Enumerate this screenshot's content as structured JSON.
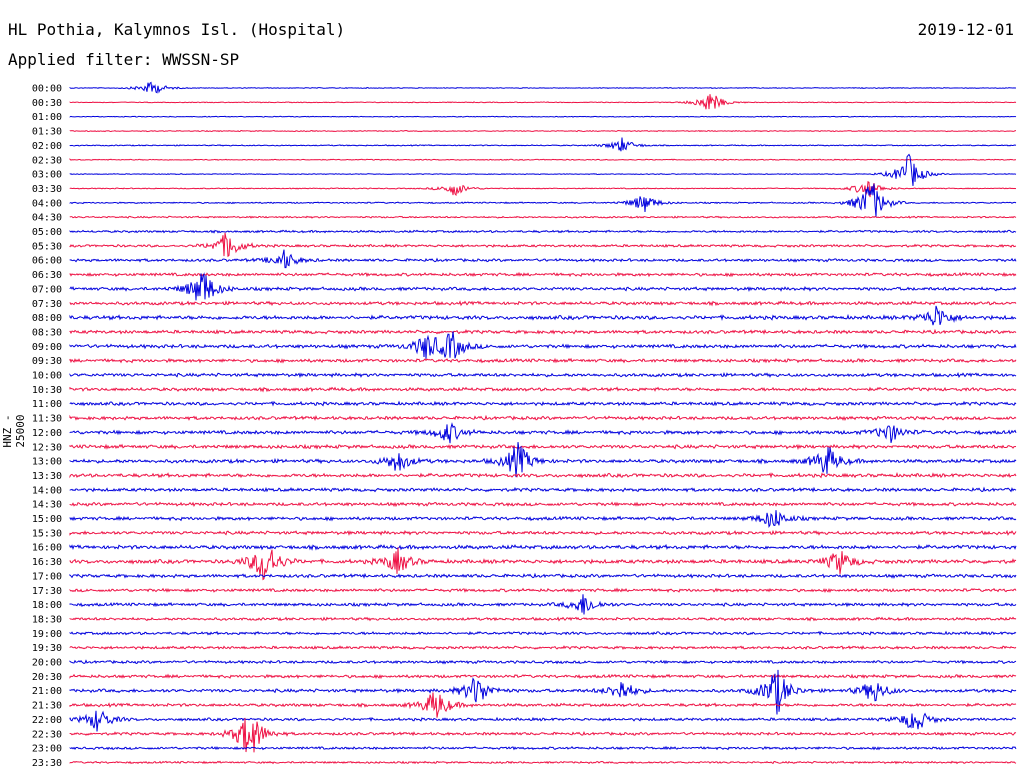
{
  "header": {
    "station": "HL Pothia, Kalymnos Isl. (Hospital)",
    "date": "2019-12-01",
    "filter": "Applied filter: WWSSN-SP"
  },
  "axis": {
    "channel_label": "HNZ - 25000"
  },
  "colors": {
    "trace_a": "#0000dd",
    "trace_b": "#ee1144",
    "text": "#000000"
  },
  "chart_data": {
    "type": "line",
    "ylabel": "HNZ - 25000",
    "rows": [
      "00:00",
      "00:30",
      "01:00",
      "01:30",
      "02:00",
      "02:30",
      "03:00",
      "03:30",
      "04:00",
      "04:30",
      "05:00",
      "05:30",
      "06:00",
      "06:30",
      "07:00",
      "07:30",
      "08:00",
      "08:30",
      "09:00",
      "09:30",
      "10:00",
      "10:30",
      "11:00",
      "11:30",
      "12:00",
      "12:30",
      "13:00",
      "13:30",
      "14:00",
      "14:30",
      "15:00",
      "15:30",
      "16:00",
      "16:30",
      "17:00",
      "17:30",
      "18:00",
      "18:30",
      "19:00",
      "19:30",
      "20:00",
      "20:30",
      "21:00",
      "21:30",
      "22:00",
      "22:30",
      "23:00",
      "23:30"
    ],
    "row_colors": [
      "trace_a",
      "trace_b"
    ],
    "x_range_minutes": [
      0,
      30
    ],
    "noise_level": [
      0.15,
      0.15,
      0.15,
      0.18,
      0.2,
      0.18,
      0.15,
      0.18,
      0.25,
      0.3,
      0.4,
      0.45,
      0.5,
      0.55,
      0.6,
      0.6,
      0.7,
      0.6,
      0.65,
      0.6,
      0.6,
      0.6,
      0.6,
      0.6,
      0.65,
      0.65,
      0.65,
      0.65,
      0.6,
      0.6,
      0.6,
      0.6,
      0.7,
      0.7,
      0.6,
      0.55,
      0.55,
      0.5,
      0.5,
      0.5,
      0.5,
      0.55,
      0.6,
      0.55,
      0.5,
      0.5,
      0.45,
      0.35
    ],
    "events": [
      {
        "row": "00:00",
        "minute": 2.6,
        "amp": 0.6
      },
      {
        "row": "00:30",
        "minute": 20.3,
        "amp": 0.9
      },
      {
        "row": "02:00",
        "minute": 17.5,
        "amp": 0.6
      },
      {
        "row": "03:00",
        "minute": 26.6,
        "amp": 1.6
      },
      {
        "row": "03:30",
        "minute": 12.2,
        "amp": 0.6
      },
      {
        "row": "03:30",
        "minute": 25.3,
        "amp": 0.8
      },
      {
        "row": "04:00",
        "minute": 18.2,
        "amp": 0.8
      },
      {
        "row": "04:00",
        "minute": 25.4,
        "amp": 2.0
      },
      {
        "row": "05:30",
        "minute": 5.0,
        "amp": 1.2
      },
      {
        "row": "06:00",
        "minute": 6.8,
        "amp": 0.8
      },
      {
        "row": "07:00",
        "minute": 4.2,
        "amp": 1.7
      },
      {
        "row": "08:00",
        "minute": 27.5,
        "amp": 1.0
      },
      {
        "row": "09:00",
        "minute": 11.3,
        "amp": 1.0
      },
      {
        "row": "09:00",
        "minute": 12.1,
        "amp": 1.2
      },
      {
        "row": "12:00",
        "minute": 12.0,
        "amp": 0.9
      },
      {
        "row": "12:00",
        "minute": 26.0,
        "amp": 0.8
      },
      {
        "row": "13:00",
        "minute": 10.4,
        "amp": 0.9
      },
      {
        "row": "13:00",
        "minute": 14.2,
        "amp": 1.5
      },
      {
        "row": "13:00",
        "minute": 24.0,
        "amp": 1.3
      },
      {
        "row": "15:00",
        "minute": 22.3,
        "amp": 0.9
      },
      {
        "row": "16:30",
        "minute": 6.2,
        "amp": 2.0
      },
      {
        "row": "16:30",
        "minute": 10.4,
        "amp": 1.0
      },
      {
        "row": "16:30",
        "minute": 24.4,
        "amp": 1.0
      },
      {
        "row": "18:00",
        "minute": 16.3,
        "amp": 0.9
      },
      {
        "row": "21:00",
        "minute": 12.9,
        "amp": 1.3
      },
      {
        "row": "21:00",
        "minute": 17.5,
        "amp": 0.9
      },
      {
        "row": "21:00",
        "minute": 22.4,
        "amp": 2.0
      },
      {
        "row": "21:00",
        "minute": 25.5,
        "amp": 1.0
      },
      {
        "row": "21:30",
        "minute": 11.6,
        "amp": 1.3
      },
      {
        "row": "22:00",
        "minute": 0.9,
        "amp": 1.0
      },
      {
        "row": "22:00",
        "minute": 26.8,
        "amp": 1.1
      },
      {
        "row": "22:30",
        "minute": 5.7,
        "amp": 2.2
      }
    ]
  }
}
